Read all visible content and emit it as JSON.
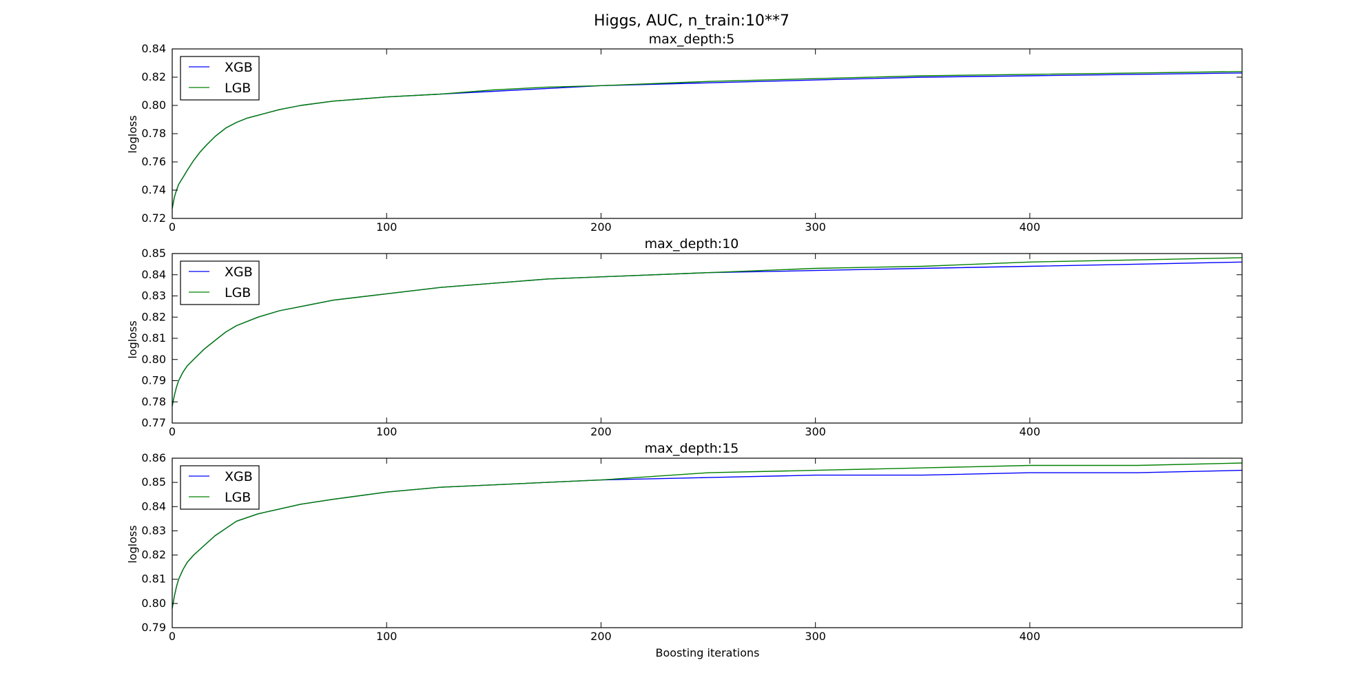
{
  "figure": {
    "title": "Higgs, AUC, n_train:10**7",
    "xlabel": "Boosting iterations"
  },
  "colors": {
    "XGB": "#0000ff",
    "LGB": "#008000",
    "axes": "#000000",
    "background": "#ffffff"
  },
  "chart_data": [
    {
      "type": "line",
      "title": "max_depth:5",
      "xlabel": "",
      "ylabel": "logloss",
      "xlim": [
        0,
        499
      ],
      "ylim": [
        0.72,
        0.84
      ],
      "xticks": [
        0,
        100,
        200,
        300,
        400
      ],
      "xtick_labels": [
        "0",
        "100",
        "200",
        "300",
        "400"
      ],
      "yticks": [
        0.72,
        0.74,
        0.76,
        0.78,
        0.8,
        0.82,
        0.84
      ],
      "ytick_labels": [
        "0.72",
        "0.74",
        "0.76",
        "0.78",
        "0.80",
        "0.82",
        "0.84"
      ],
      "grid": false,
      "legend_position": "top-left",
      "x": [
        0,
        1,
        2,
        3,
        5,
        7,
        10,
        13,
        16,
        20,
        25,
        30,
        35,
        40,
        50,
        60,
        75,
        100,
        125,
        150,
        175,
        200,
        250,
        300,
        350,
        400,
        450,
        499
      ],
      "series": [
        {
          "name": "XGB",
          "values": [
            0.727,
            0.735,
            0.74,
            0.744,
            0.749,
            0.754,
            0.761,
            0.767,
            0.772,
            0.778,
            0.784,
            0.788,
            0.791,
            0.793,
            0.797,
            0.8,
            0.803,
            0.806,
            0.808,
            0.81,
            0.812,
            0.814,
            0.816,
            0.818,
            0.82,
            0.821,
            0.822,
            0.823
          ]
        },
        {
          "name": "LGB",
          "values": [
            0.727,
            0.735,
            0.74,
            0.744,
            0.749,
            0.754,
            0.761,
            0.767,
            0.772,
            0.778,
            0.784,
            0.788,
            0.791,
            0.793,
            0.797,
            0.8,
            0.803,
            0.806,
            0.808,
            0.811,
            0.813,
            0.814,
            0.817,
            0.819,
            0.821,
            0.822,
            0.823,
            0.824
          ]
        }
      ]
    },
    {
      "type": "line",
      "title": "max_depth:10",
      "xlabel": "",
      "ylabel": "logloss",
      "xlim": [
        0,
        499
      ],
      "ylim": [
        0.77,
        0.85
      ],
      "xticks": [
        0,
        100,
        200,
        300,
        400
      ],
      "xtick_labels": [
        "0",
        "100",
        "200",
        "300",
        "400"
      ],
      "yticks": [
        0.77,
        0.78,
        0.79,
        0.8,
        0.81,
        0.82,
        0.83,
        0.84,
        0.85
      ],
      "ytick_labels": [
        "0.77",
        "0.78",
        "0.79",
        "0.80",
        "0.81",
        "0.82",
        "0.83",
        "0.84",
        "0.85"
      ],
      "grid": false,
      "legend_position": "top-left",
      "x": [
        0,
        1,
        2,
        3,
        5,
        7,
        10,
        15,
        20,
        25,
        30,
        40,
        50,
        60,
        75,
        100,
        125,
        150,
        175,
        200,
        250,
        300,
        350,
        400,
        450,
        499
      ],
      "series": [
        {
          "name": "XGB",
          "values": [
            0.778,
            0.783,
            0.787,
            0.79,
            0.794,
            0.797,
            0.8,
            0.805,
            0.809,
            0.813,
            0.816,
            0.82,
            0.823,
            0.825,
            0.828,
            0.831,
            0.834,
            0.836,
            0.838,
            0.839,
            0.841,
            0.842,
            0.843,
            0.844,
            0.845,
            0.846
          ]
        },
        {
          "name": "LGB",
          "values": [
            0.778,
            0.783,
            0.787,
            0.79,
            0.794,
            0.797,
            0.8,
            0.805,
            0.809,
            0.813,
            0.816,
            0.82,
            0.823,
            0.825,
            0.828,
            0.831,
            0.834,
            0.836,
            0.838,
            0.839,
            0.841,
            0.843,
            0.844,
            0.846,
            0.847,
            0.848
          ]
        }
      ]
    },
    {
      "type": "line",
      "title": "max_depth:15",
      "xlabel": "Boosting iterations",
      "ylabel": "logloss",
      "xlim": [
        0,
        499
      ],
      "ylim": [
        0.79,
        0.86
      ],
      "xticks": [
        0,
        100,
        200,
        300,
        400
      ],
      "xtick_labels": [
        "0",
        "100",
        "200",
        "300",
        "400"
      ],
      "yticks": [
        0.79,
        0.8,
        0.81,
        0.82,
        0.83,
        0.84,
        0.85,
        0.86
      ],
      "ytick_labels": [
        "0.79",
        "0.80",
        "0.81",
        "0.82",
        "0.83",
        "0.84",
        "0.85",
        "0.86"
      ],
      "grid": false,
      "legend_position": "top-left",
      "x": [
        0,
        1,
        2,
        3,
        5,
        7,
        10,
        15,
        20,
        25,
        30,
        40,
        50,
        60,
        75,
        100,
        125,
        150,
        175,
        200,
        250,
        300,
        350,
        400,
        450,
        499
      ],
      "series": [
        {
          "name": "XGB",
          "values": [
            0.798,
            0.803,
            0.807,
            0.81,
            0.814,
            0.817,
            0.82,
            0.824,
            0.828,
            0.831,
            0.834,
            0.837,
            0.839,
            0.841,
            0.843,
            0.846,
            0.848,
            0.849,
            0.85,
            0.851,
            0.852,
            0.853,
            0.853,
            0.854,
            0.854,
            0.855
          ]
        },
        {
          "name": "LGB",
          "values": [
            0.798,
            0.803,
            0.807,
            0.81,
            0.814,
            0.817,
            0.82,
            0.824,
            0.828,
            0.831,
            0.834,
            0.837,
            0.839,
            0.841,
            0.843,
            0.846,
            0.848,
            0.849,
            0.85,
            0.851,
            0.854,
            0.855,
            0.856,
            0.857,
            0.857,
            0.858
          ]
        }
      ]
    }
  ]
}
